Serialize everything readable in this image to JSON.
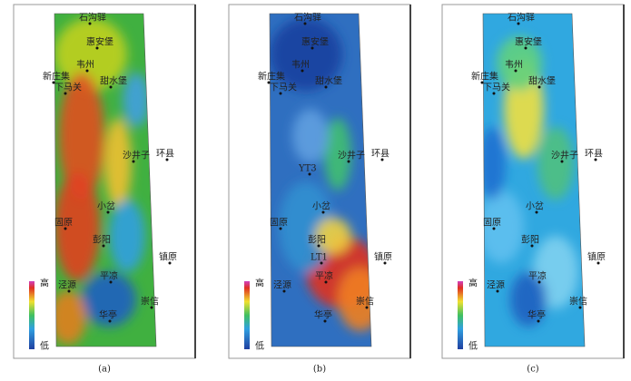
{
  "panels": [
    {
      "caption": "(a)",
      "legend": {
        "high": "高",
        "low": "低"
      },
      "places": [
        "石沟驿",
        "惠安堡",
        "韦州",
        "新庄集",
        "下马关",
        "甜水堡",
        "沙井子",
        "环县",
        "小岔",
        "固原",
        "彭阳",
        "镇原",
        "平凉",
        "泾源",
        "崇信",
        "华亭"
      ]
    },
    {
      "caption": "(b)",
      "legend": {
        "high": "高",
        "low": "低"
      },
      "places": [
        "石沟驿",
        "惠安堡",
        "韦州",
        "新庄集",
        "下马关",
        "甜水堡",
        "沙井子",
        "环县",
        "小岔",
        "固原",
        "彭阳",
        "镇原",
        "平凉",
        "泾源",
        "崇信",
        "华亭",
        "YT3",
        "LT1"
      ]
    },
    {
      "caption": "(c)",
      "legend": {
        "high": "高",
        "low": "低"
      },
      "places": [
        "石沟驿",
        "惠安堡",
        "韦州",
        "新庄集",
        "下马关",
        "甜水堡",
        "沙井子",
        "环县",
        "小岔",
        "固原",
        "彭阳",
        "镇原",
        "平凉",
        "泾源",
        "崇信",
        "华亭"
      ]
    }
  ]
}
